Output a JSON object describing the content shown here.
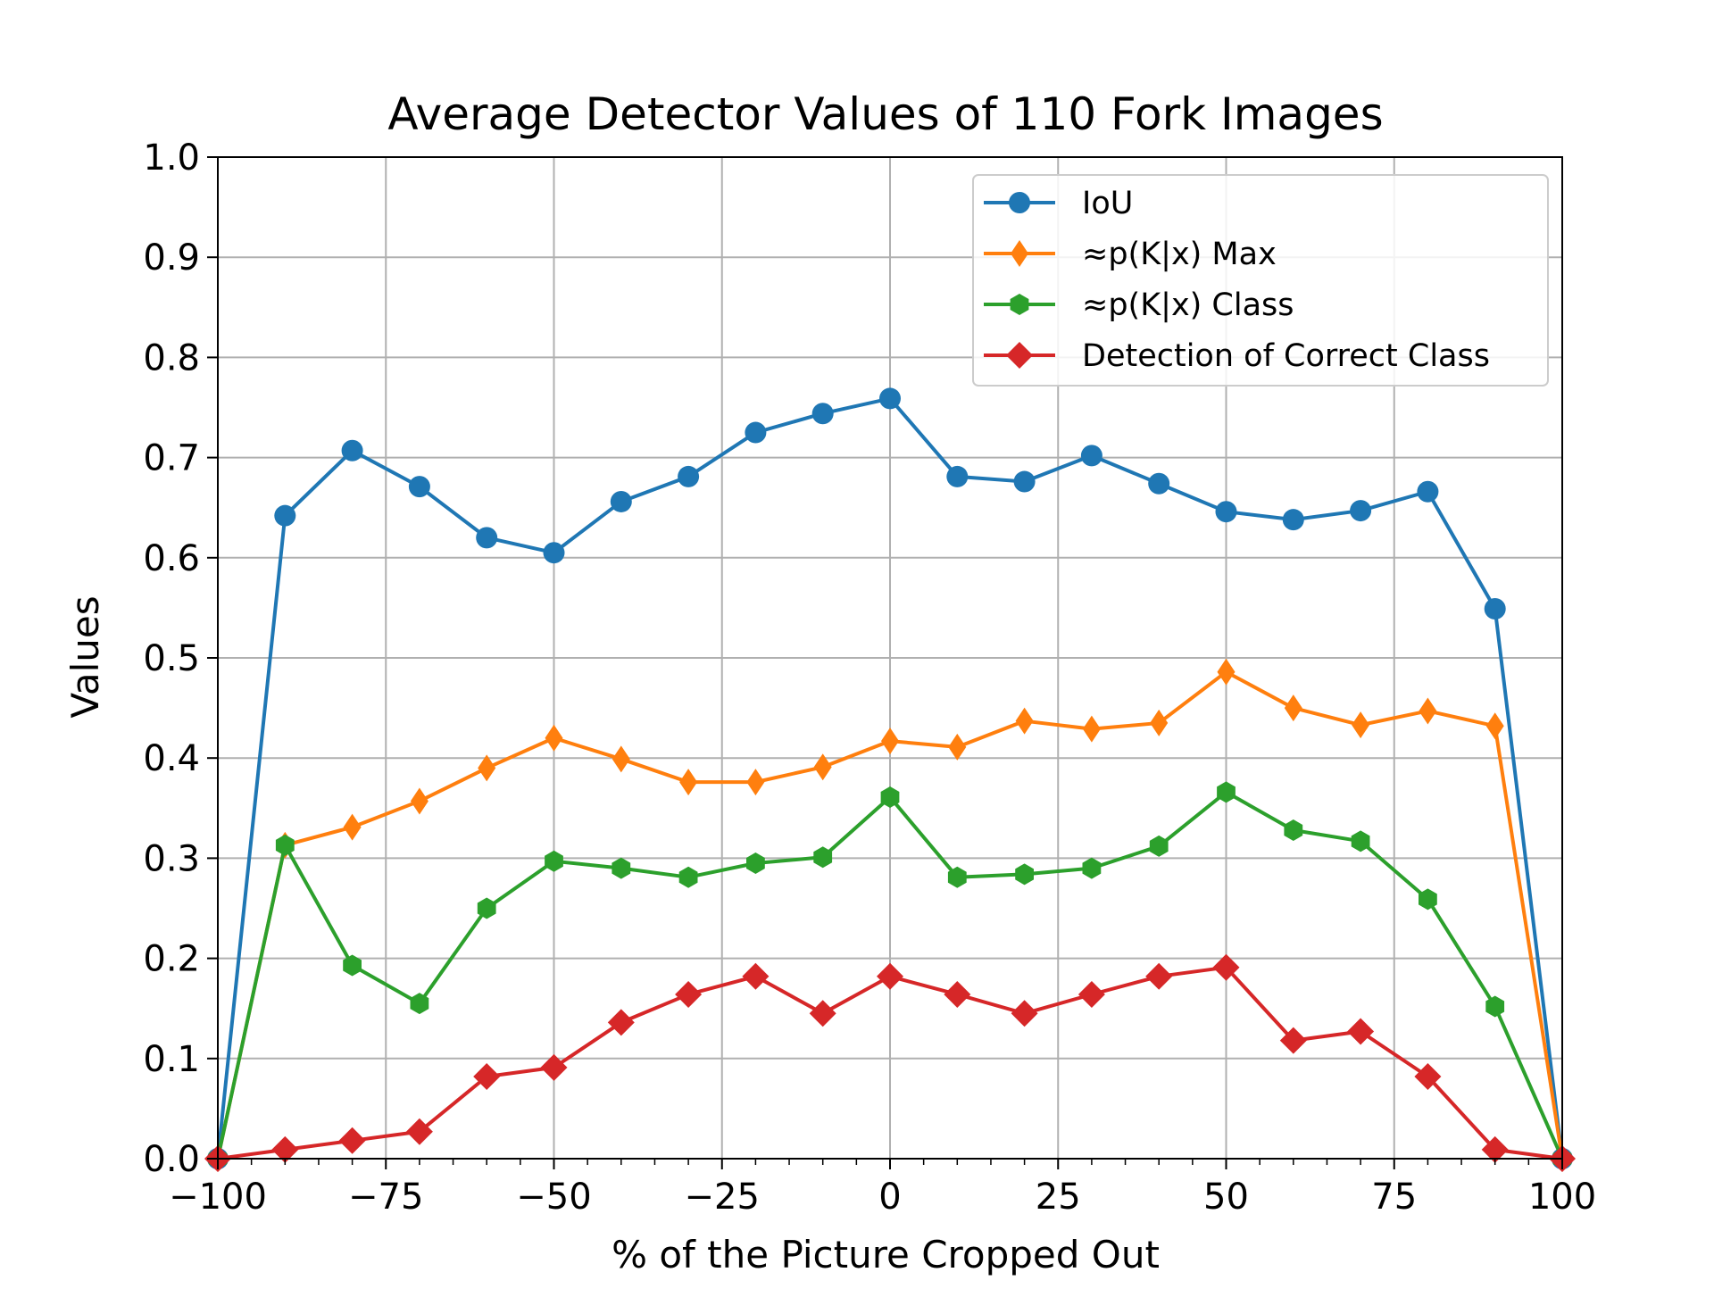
{
  "chart_data": {
    "type": "line",
    "title": "Average Detector Values of 110 Fork Images",
    "xlabel": "% of the Picture Cropped Out",
    "ylabel": "Values",
    "xlim": [
      -100,
      100
    ],
    "ylim": [
      0.0,
      1.0
    ],
    "grid": true,
    "legend_position": "top-right",
    "x": [
      -100,
      -90,
      -80,
      -70,
      -60,
      -50,
      -40,
      -30,
      -20,
      -10,
      0,
      10,
      20,
      30,
      40,
      50,
      60,
      70,
      80,
      90,
      100
    ],
    "x_ticks": [
      "−100",
      "−75",
      "−50",
      "−25",
      "0",
      "25",
      "50",
      "75",
      "100"
    ],
    "y_ticks": [
      "0.0",
      "0.1",
      "0.2",
      "0.3",
      "0.4",
      "0.5",
      "0.6",
      "0.7",
      "0.8",
      "0.9",
      "1.0"
    ],
    "series": [
      {
        "name": "IoU",
        "color": "#1f77b4",
        "marker": "circle",
        "values": [
          0.0,
          0.642,
          0.707,
          0.671,
          0.62,
          0.605,
          0.656,
          0.681,
          0.725,
          0.744,
          0.759,
          0.681,
          0.676,
          0.702,
          0.674,
          0.646,
          0.638,
          0.647,
          0.666,
          0.549,
          0.0
        ]
      },
      {
        "name": "≈p(K|x) Max",
        "color": "#ff7f0e",
        "marker": "thin-diamond",
        "values": [
          0.0,
          0.313,
          0.331,
          0.357,
          0.39,
          0.42,
          0.399,
          0.376,
          0.376,
          0.391,
          0.417,
          0.411,
          0.437,
          0.429,
          0.435,
          0.486,
          0.45,
          0.433,
          0.447,
          0.432,
          0.0
        ]
      },
      {
        "name": "≈p(K|x) Class",
        "color": "#2ca02c",
        "marker": "hexagon",
        "values": [
          0.0,
          0.313,
          0.193,
          0.155,
          0.25,
          0.297,
          0.29,
          0.281,
          0.295,
          0.301,
          0.361,
          0.281,
          0.284,
          0.29,
          0.312,
          0.366,
          0.328,
          0.317,
          0.259,
          0.152,
          0.0
        ]
      },
      {
        "name": "Detection of Correct Class",
        "color": "#d62728",
        "marker": "diamond",
        "values": [
          0.0,
          0.009,
          0.018,
          0.027,
          0.082,
          0.091,
          0.136,
          0.164,
          0.182,
          0.145,
          0.182,
          0.164,
          0.145,
          0.164,
          0.182,
          0.191,
          0.118,
          0.127,
          0.082,
          0.009,
          0.0
        ]
      }
    ]
  }
}
